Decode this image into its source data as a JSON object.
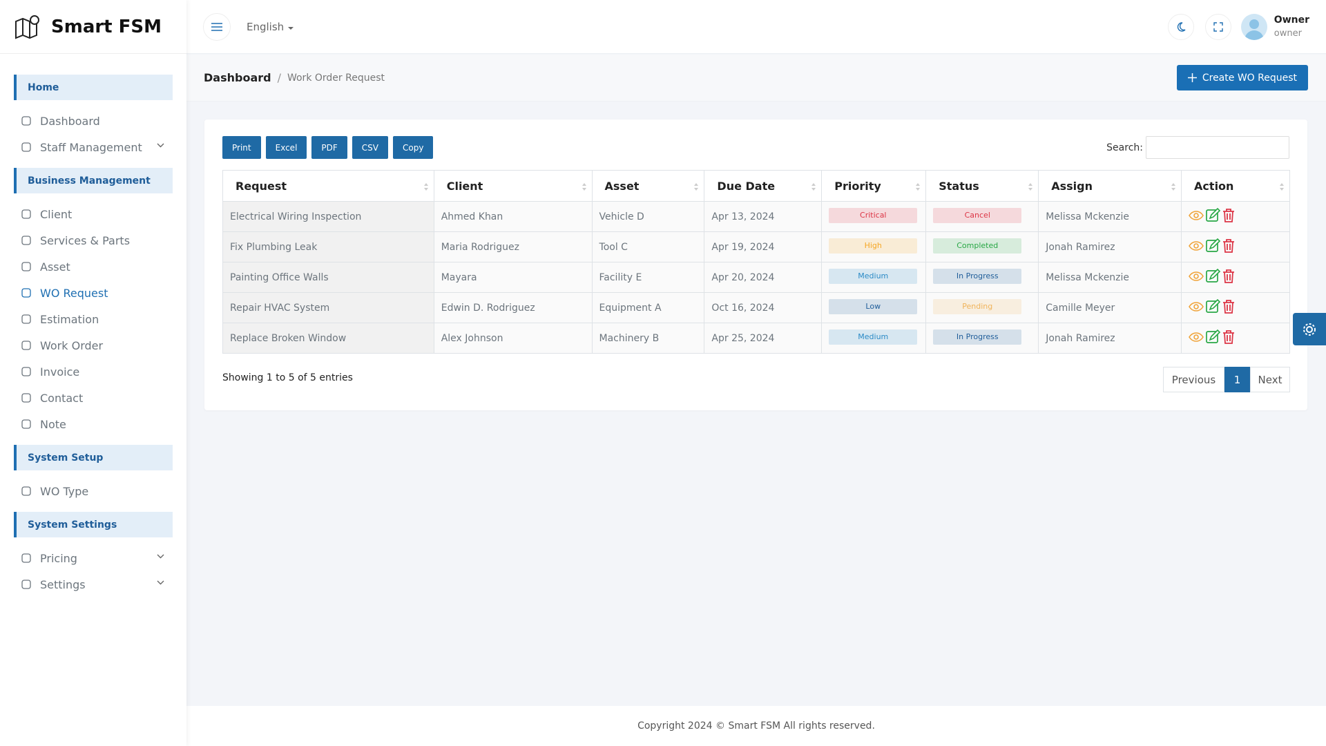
{
  "header": {
    "brand": "Smart FSM",
    "language": "English",
    "user_name": "Owner",
    "user_role": "owner"
  },
  "sidebar": {
    "sections": [
      {
        "title": "Home",
        "items": [
          {
            "label": "Dashboard"
          },
          {
            "label": "Staff Management",
            "submenu": true
          }
        ]
      },
      {
        "title": "Business Management",
        "items": [
          {
            "label": "Client"
          },
          {
            "label": "Services & Parts"
          },
          {
            "label": "Asset"
          },
          {
            "label": "WO Request",
            "active": true
          },
          {
            "label": "Estimation"
          },
          {
            "label": "Work Order"
          },
          {
            "label": "Invoice"
          },
          {
            "label": "Contact"
          },
          {
            "label": "Note"
          }
        ]
      },
      {
        "title": "System Setup",
        "items": [
          {
            "label": "WO Type"
          }
        ]
      },
      {
        "title": "System Settings",
        "items": [
          {
            "label": "Pricing",
            "submenu": true
          },
          {
            "label": "Settings",
            "submenu": true
          }
        ]
      }
    ]
  },
  "breadcrumb": {
    "root": "Dashboard",
    "current": "Work Order Request"
  },
  "create_button": "Create WO Request",
  "export_buttons": [
    "Print",
    "Excel",
    "PDF",
    "CSV",
    "Copy"
  ],
  "search_label": "Search:",
  "table": {
    "columns": [
      "Request",
      "Client",
      "Asset",
      "Due Date",
      "Priority",
      "Status",
      "Assign",
      "Action"
    ],
    "rows": [
      {
        "request": "Electrical Wiring Inspection",
        "client": "Ahmed Khan",
        "asset": "Vehicle D",
        "due_date": "Apr 13, 2024",
        "priority": "Critical",
        "priority_color": "#dc3545",
        "status": "Cancel",
        "status_color": "#dc3545",
        "assign": "Melissa Mckenzie"
      },
      {
        "request": "Fix Plumbing Leak",
        "client": "Maria Rodriguez",
        "asset": "Tool C",
        "due_date": "Apr 19, 2024",
        "priority": "High",
        "priority_color": "#f5a623",
        "status": "Completed",
        "status_color": "#28a745",
        "assign": "Jonah Ramirez"
      },
      {
        "request": "Painting Office Walls",
        "client": "Mayara",
        "asset": "Facility E",
        "due_date": "Apr 20, 2024",
        "priority": "Medium",
        "priority_color": "#2b8ac6",
        "status": "In Progress",
        "status_color": "#1f5d99",
        "assign": "Melissa Mckenzie"
      },
      {
        "request": "Repair HVAC System",
        "client": "Edwin D. Rodriguez",
        "asset": "Equipment A",
        "due_date": "Oct 16, 2024",
        "priority": "Low",
        "priority_color": "#1f5d99",
        "status": "Pending",
        "status_color": "#f0b35a",
        "assign": "Camille Meyer"
      },
      {
        "request": "Replace Broken Window",
        "client": "Alex Johnson",
        "asset": "Machinery B",
        "due_date": "Apr 25, 2024",
        "priority": "Medium",
        "priority_color": "#2b8ac6",
        "status": "In Progress",
        "status_color": "#1f5d99",
        "assign": "Jonah Ramirez"
      }
    ]
  },
  "info": "Showing 1 to 5 of 5 entries",
  "pagination": {
    "previous": "Previous",
    "current": "1",
    "next": "Next"
  },
  "footer": "Copyright 2024 © Smart FSM All rights reserved."
}
